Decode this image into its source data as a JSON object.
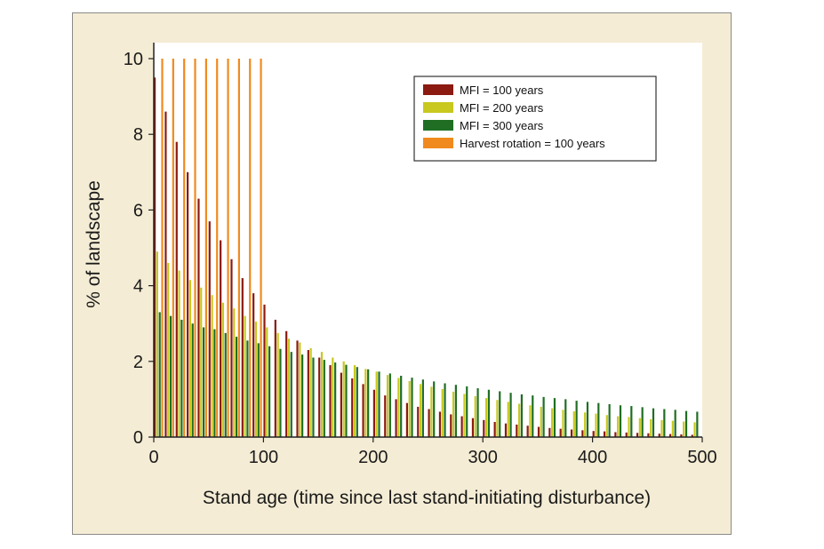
{
  "chart_data": {
    "type": "bar",
    "title": "",
    "xlabel": "Stand age (time since last stand-initiating disturbance)",
    "ylabel": "% of landscape",
    "xlim": [
      0,
      500
    ],
    "ylim": [
      0,
      10
    ],
    "x_ticks": [
      "0",
      "100",
      "200",
      "300",
      "400",
      "500"
    ],
    "y_ticks": [
      "0",
      "2",
      "4",
      "6",
      "8",
      "10"
    ],
    "bin_width": 10,
    "legend_position": "top-right",
    "series": [
      {
        "name": "MFI = 100 years",
        "color": "#8b1a10",
        "x": [
          0,
          10,
          20,
          30,
          40,
          50,
          60,
          70,
          80,
          90,
          100,
          110,
          120,
          130,
          140,
          150,
          160,
          170,
          180,
          190,
          200,
          210,
          220,
          230,
          240,
          250,
          260,
          270,
          280,
          290,
          300,
          310,
          320,
          330,
          340,
          350,
          360,
          370,
          380,
          390,
          400,
          410,
          420,
          430,
          440,
          450,
          460,
          470,
          480,
          490
        ],
        "values": [
          9.5,
          8.6,
          7.8,
          7.0,
          6.3,
          5.7,
          5.2,
          4.7,
          4.2,
          3.8,
          3.5,
          3.1,
          2.8,
          2.55,
          2.3,
          2.1,
          1.9,
          1.7,
          1.55,
          1.4,
          1.25,
          1.1,
          1.0,
          0.9,
          0.8,
          0.74,
          0.67,
          0.6,
          0.55,
          0.5,
          0.45,
          0.4,
          0.36,
          0.33,
          0.3,
          0.27,
          0.24,
          0.22,
          0.2,
          0.18,
          0.16,
          0.15,
          0.13,
          0.12,
          0.11,
          0.1,
          0.09,
          0.08,
          0.07,
          0.06
        ]
      },
      {
        "name": "MFI = 200 years",
        "color": "#c8c81e",
        "x": [
          0,
          10,
          20,
          30,
          40,
          50,
          60,
          70,
          80,
          90,
          100,
          110,
          120,
          130,
          140,
          150,
          160,
          170,
          180,
          190,
          200,
          210,
          220,
          230,
          240,
          250,
          260,
          270,
          280,
          290,
          300,
          310,
          320,
          330,
          340,
          350,
          360,
          370,
          380,
          390,
          400,
          410,
          420,
          430,
          440,
          450,
          460,
          470,
          480,
          490
        ],
        "values": [
          4.9,
          4.6,
          4.4,
          4.15,
          3.95,
          3.75,
          3.55,
          3.4,
          3.2,
          3.05,
          2.9,
          2.75,
          2.6,
          2.5,
          2.35,
          2.25,
          2.1,
          2.0,
          1.9,
          1.8,
          1.73,
          1.64,
          1.56,
          1.48,
          1.4,
          1.33,
          1.27,
          1.2,
          1.14,
          1.08,
          1.03,
          0.98,
          0.93,
          0.88,
          0.84,
          0.8,
          0.76,
          0.72,
          0.68,
          0.65,
          0.62,
          0.58,
          0.55,
          0.53,
          0.5,
          0.47,
          0.45,
          0.43,
          0.41,
          0.39
        ]
      },
      {
        "name": "MFI = 300 years",
        "color": "#1f6e24",
        "x": [
          0,
          10,
          20,
          30,
          40,
          50,
          60,
          70,
          80,
          90,
          100,
          110,
          120,
          130,
          140,
          150,
          160,
          170,
          180,
          190,
          200,
          210,
          220,
          230,
          240,
          250,
          260,
          270,
          280,
          290,
          300,
          310,
          320,
          330,
          340,
          350,
          360,
          370,
          380,
          390,
          400,
          410,
          420,
          430,
          440,
          450,
          460,
          470,
          480,
          490
        ],
        "values": [
          3.3,
          3.2,
          3.1,
          3.0,
          2.9,
          2.85,
          2.75,
          2.65,
          2.55,
          2.48,
          2.4,
          2.33,
          2.25,
          2.18,
          2.1,
          2.04,
          1.97,
          1.91,
          1.85,
          1.79,
          1.73,
          1.68,
          1.62,
          1.57,
          1.52,
          1.47,
          1.42,
          1.38,
          1.34,
          1.29,
          1.25,
          1.21,
          1.17,
          1.13,
          1.1,
          1.06,
          1.03,
          1.0,
          0.96,
          0.93,
          0.9,
          0.87,
          0.84,
          0.82,
          0.79,
          0.76,
          0.74,
          0.72,
          0.69,
          0.67
        ]
      },
      {
        "name": "Harvest rotation = 100 years",
        "color": "#f08a1e",
        "x": [
          0,
          10,
          20,
          30,
          40,
          50,
          60,
          70,
          80,
          90,
          100,
          110,
          120,
          130,
          140,
          150,
          160,
          170,
          180,
          190,
          200,
          210,
          220,
          230,
          240,
          250,
          260,
          270,
          280,
          290,
          300,
          310,
          320,
          330,
          340,
          350,
          360,
          370,
          380,
          390,
          400,
          410,
          420,
          430,
          440,
          450,
          460,
          470,
          480,
          490
        ],
        "values": [
          10,
          10,
          10,
          10,
          10,
          10,
          10,
          10,
          10,
          10,
          0,
          0,
          0,
          0,
          0,
          0,
          0,
          0,
          0,
          0,
          0,
          0,
          0,
          0,
          0,
          0,
          0,
          0,
          0,
          0,
          0,
          0,
          0,
          0,
          0,
          0,
          0,
          0,
          0,
          0,
          0,
          0,
          0,
          0,
          0,
          0,
          0,
          0,
          0,
          0
        ]
      }
    ]
  }
}
